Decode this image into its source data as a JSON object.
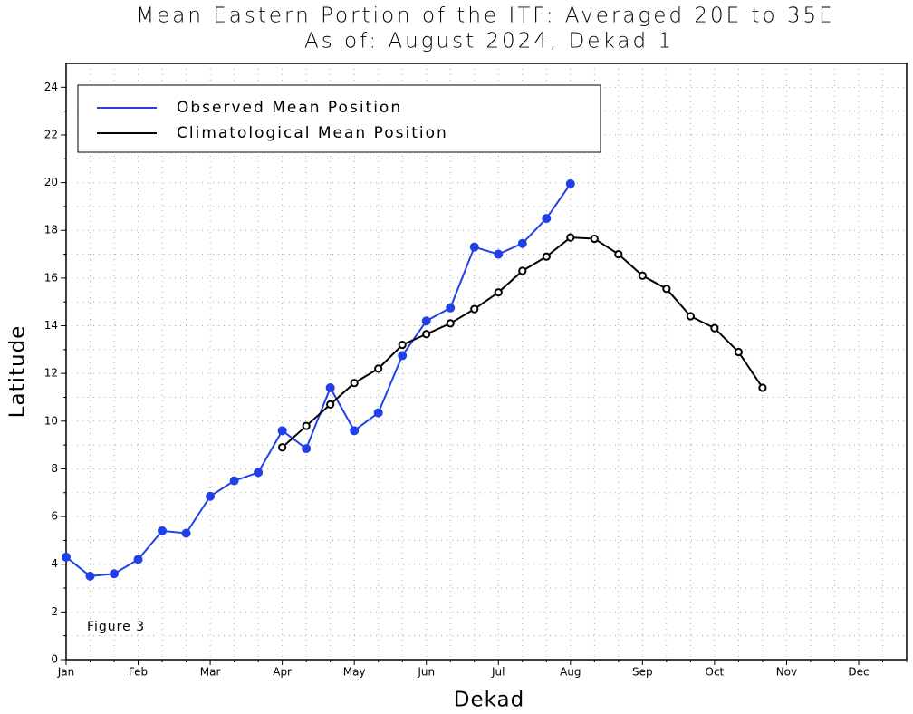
{
  "chart_data": {
    "type": "line",
    "title": "Mean Eastern Portion of the ITF: Averaged 20E to 35E",
    "subtitle": "As of: August 2024, Dekad 1",
    "x_label": "Dekad",
    "y_label": "Latitude",
    "annotation": "Figure 3",
    "x": [
      0,
      1,
      2,
      3,
      4,
      5,
      6,
      7,
      8,
      9,
      10,
      11,
      12,
      13,
      14,
      15,
      16,
      17,
      18,
      19,
      20,
      21,
      22,
      23,
      24,
      25,
      26,
      27,
      28,
      29
    ],
    "series": [
      {
        "name": "Observed Mean Position",
        "color": "#2140e8",
        "marker": "filled",
        "values": [
          4.3,
          3.5,
          3.6,
          4.2,
          5.4,
          5.3,
          6.85,
          7.5,
          7.85,
          9.6,
          8.85,
          11.4,
          9.6,
          10.35,
          12.75,
          14.2,
          14.75,
          17.3,
          17.0,
          17.45,
          18.5,
          19.95,
          null,
          null,
          null,
          null,
          null,
          null,
          null,
          null
        ]
      },
      {
        "name": "Climatological Mean Position",
        "color": "#000000",
        "marker": "open",
        "values": [
          null,
          null,
          null,
          null,
          null,
          null,
          null,
          null,
          null,
          8.9,
          9.8,
          10.7,
          11.6,
          12.2,
          13.2,
          13.65,
          14.1,
          14.7,
          15.4,
          16.3,
          16.9,
          17.7,
          17.65,
          17.0,
          16.1,
          15.55,
          14.4,
          13.9,
          12.9,
          11.4
        ]
      }
    ],
    "xlim": [
      0,
      35
    ],
    "xticks": [
      {
        "value": 0,
        "label": "Jan"
      },
      {
        "value": 3,
        "label": "Feb"
      },
      {
        "value": 6,
        "label": "Mar"
      },
      {
        "value": 9,
        "label": "Apr"
      },
      {
        "value": 12,
        "label": "May"
      },
      {
        "value": 15,
        "label": "Jun"
      },
      {
        "value": 18,
        "label": "Jul"
      },
      {
        "value": 21,
        "label": "Aug"
      },
      {
        "value": 24,
        "label": "Sep"
      },
      {
        "value": 27,
        "label": "Oct"
      },
      {
        "value": 30,
        "label": "Nov"
      },
      {
        "value": 33,
        "label": "Dec"
      }
    ],
    "ylim": [
      0,
      25
    ],
    "yticks": [
      0,
      2,
      4,
      6,
      8,
      10,
      12,
      14,
      16,
      18,
      20,
      22,
      24
    ],
    "grid": true,
    "legend": "upper left"
  }
}
